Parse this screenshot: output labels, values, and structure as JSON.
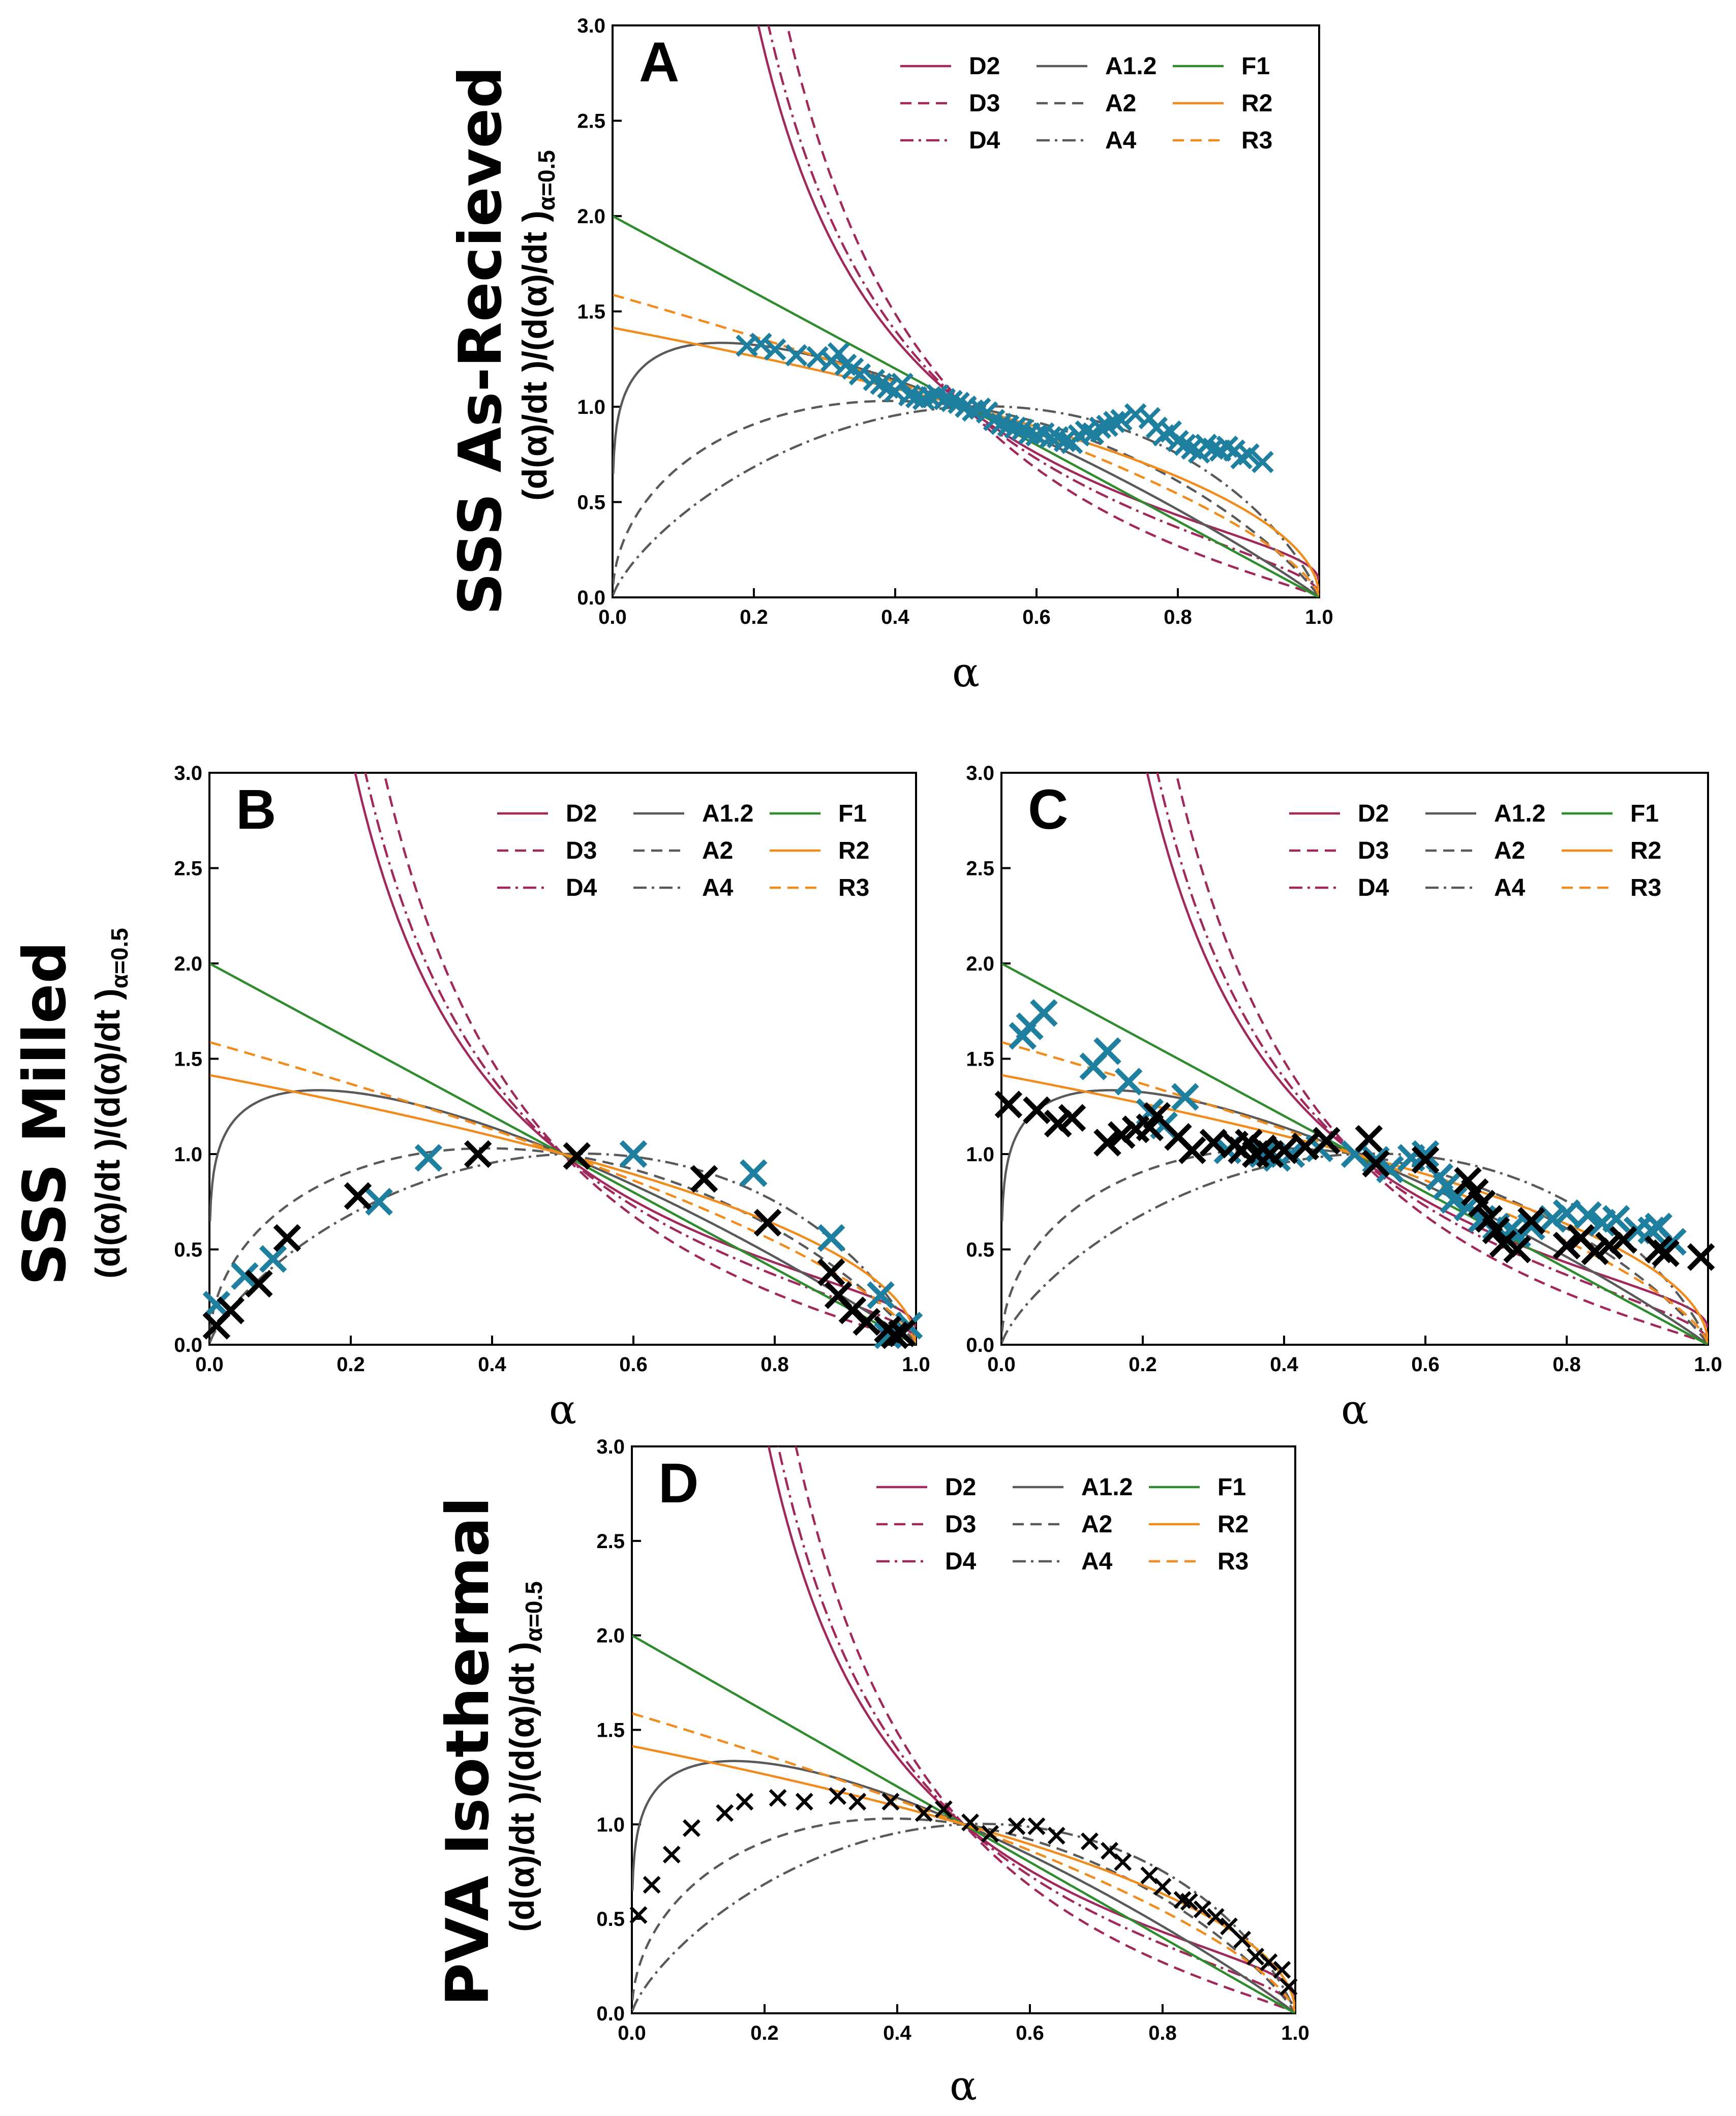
{
  "rows": {
    "as_received": "SSS As-Recieved",
    "milled": "SSS Milled",
    "pva": "PVA Isothermal"
  },
  "axis_text": {
    "y_main": "(d(α)/dt )/(d(α)/dt )",
    "y_sub": "α=0.5",
    "x": "α"
  },
  "colors": {
    "diffusion": "#a0285a",
    "avrami": "#595959",
    "first_order": "#2e8b2e",
    "contracting": "#f08c1e",
    "data_blue": "#1f7f9f",
    "data_black": "#000000"
  },
  "chart_data": [
    {
      "type": "line",
      "panel": "A",
      "row": "as_received",
      "xlim": [
        0,
        1
      ],
      "ylim": [
        0,
        3
      ],
      "xticks": [
        "0.0",
        "0.2",
        "0.4",
        "0.6",
        "0.8",
        "1.0"
      ],
      "yticks": [
        "0.0",
        "0.5",
        "1.0",
        "1.5",
        "2.0",
        "2.5",
        "3.0"
      ],
      "models": [
        "D2",
        "D3",
        "D4",
        "A1.2",
        "A2",
        "A4",
        "F1",
        "R2",
        "R3"
      ],
      "legend": [
        [
          "D2",
          "A1.2",
          "F1"
        ],
        [
          "D3",
          "A2",
          "R2"
        ],
        [
          "D4",
          "A4",
          "R3"
        ]
      ],
      "legend_position": "top-right",
      "data_series": [
        {
          "name": "As-Recieved",
          "color": "blue",
          "marker_scale": 1,
          "points": [
            [
              0.19,
              1.32
            ],
            [
              0.21,
              1.33
            ],
            [
              0.23,
              1.3
            ],
            [
              0.26,
              1.27
            ],
            [
              0.29,
              1.26
            ],
            [
              0.31,
              1.24
            ],
            [
              0.32,
              1.28
            ],
            [
              0.33,
              1.22
            ],
            [
              0.34,
              1.2
            ],
            [
              0.35,
              1.17
            ],
            [
              0.37,
              1.14
            ],
            [
              0.38,
              1.12
            ],
            [
              0.39,
              1.1
            ],
            [
              0.4,
              1.08
            ],
            [
              0.41,
              1.12
            ],
            [
              0.42,
              1.06
            ],
            [
              0.43,
              1.05
            ],
            [
              0.44,
              1.04
            ],
            [
              0.45,
              1.05
            ],
            [
              0.46,
              1.06
            ],
            [
              0.47,
              1.04
            ],
            [
              0.48,
              1.03
            ],
            [
              0.49,
              1.02
            ],
            [
              0.5,
              1.0
            ],
            [
              0.51,
              0.98
            ],
            [
              0.52,
              0.99
            ],
            [
              0.53,
              0.97
            ],
            [
              0.54,
              0.93
            ],
            [
              0.55,
              0.91
            ],
            [
              0.56,
              0.9
            ],
            [
              0.57,
              0.89
            ],
            [
              0.58,
              0.88
            ],
            [
              0.59,
              0.86
            ],
            [
              0.6,
              0.85
            ],
            [
              0.61,
              0.86
            ],
            [
              0.62,
              0.84
            ],
            [
              0.63,
              0.84
            ],
            [
              0.64,
              0.82
            ],
            [
              0.65,
              0.81
            ],
            [
              0.66,
              0.85
            ],
            [
              0.67,
              0.87
            ],
            [
              0.68,
              0.86
            ],
            [
              0.69,
              0.89
            ],
            [
              0.7,
              0.9
            ],
            [
              0.71,
              0.92
            ],
            [
              0.72,
              0.93
            ],
            [
              0.74,
              0.96
            ],
            [
              0.76,
              0.94
            ],
            [
              0.77,
              0.89
            ],
            [
              0.78,
              0.85
            ],
            [
              0.79,
              0.87
            ],
            [
              0.8,
              0.82
            ],
            [
              0.81,
              0.8
            ],
            [
              0.82,
              0.78
            ],
            [
              0.83,
              0.76
            ],
            [
              0.84,
              0.8
            ],
            [
              0.85,
              0.78
            ],
            [
              0.86,
              0.77
            ],
            [
              0.87,
              0.79
            ],
            [
              0.88,
              0.77
            ],
            [
              0.89,
              0.73
            ],
            [
              0.9,
              0.75
            ],
            [
              0.92,
              0.71
            ]
          ]
        }
      ]
    },
    {
      "type": "line",
      "panel": "B",
      "row": "milled",
      "xlim": [
        0,
        1
      ],
      "ylim": [
        0,
        3
      ],
      "xticks": [
        "0.0",
        "0.2",
        "0.4",
        "0.6",
        "0.8",
        "1.0"
      ],
      "yticks": [
        "0.0",
        "0.5",
        "1.0",
        "1.5",
        "2.0",
        "2.5",
        "3.0"
      ],
      "models": [
        "D2",
        "D3",
        "D4",
        "A1.2",
        "A2",
        "A4",
        "F1",
        "R2",
        "R3"
      ],
      "legend": [
        [
          "D2",
          "A1.2",
          "F1"
        ],
        [
          "D3",
          "A2",
          "R2"
        ],
        [
          "D4",
          "A4",
          "R3"
        ]
      ],
      "legend_position": "top-right",
      "data_series": [
        {
          "name": "Milled (blue)",
          "color": "blue",
          "marker_scale": 1.25,
          "points": [
            [
              0.01,
              0.21
            ],
            [
              0.05,
              0.36
            ],
            [
              0.09,
              0.45
            ],
            [
              0.24,
              0.75
            ],
            [
              0.31,
              0.98
            ],
            [
              0.6,
              1.0
            ],
            [
              0.77,
              0.9
            ],
            [
              0.88,
              0.56
            ],
            [
              0.95,
              0.26
            ],
            [
              0.96,
              0.05
            ],
            [
              0.99,
              0.1
            ]
          ]
        },
        {
          "name": "Milled (black)",
          "color": "black",
          "marker_scale": 1.25,
          "points": [
            [
              0.01,
              0.1
            ],
            [
              0.03,
              0.18
            ],
            [
              0.07,
              0.32
            ],
            [
              0.11,
              0.56
            ],
            [
              0.21,
              0.78
            ],
            [
              0.38,
              1.0
            ],
            [
              0.52,
              0.99
            ],
            [
              0.7,
              0.87
            ],
            [
              0.79,
              0.64
            ],
            [
              0.88,
              0.38
            ],
            [
              0.89,
              0.26
            ],
            [
              0.91,
              0.18
            ],
            [
              0.93,
              0.12
            ],
            [
              0.96,
              0.08
            ],
            [
              0.97,
              0.05
            ],
            [
              0.98,
              0.06
            ]
          ]
        }
      ]
    },
    {
      "type": "line",
      "panel": "C",
      "row": "milled",
      "xlim": [
        0,
        1
      ],
      "ylim": [
        0,
        3
      ],
      "xticks": [
        "0.0",
        "0.2",
        "0.4",
        "0.6",
        "0.8",
        "1.0"
      ],
      "yticks": [
        "0.0",
        "0.5",
        "1.0",
        "1.5",
        "2.0",
        "2.5",
        "3.0"
      ],
      "models": [
        "D2",
        "D3",
        "D4",
        "A1.2",
        "A2",
        "A4",
        "F1",
        "R2",
        "R3"
      ],
      "legend": [
        [
          "D2",
          "A1.2",
          "F1"
        ],
        [
          "D3",
          "A2",
          "R2"
        ],
        [
          "D4",
          "A4",
          "R3"
        ]
      ],
      "legend_position": "top-right",
      "data_series": [
        {
          "name": "Milled (blue)",
          "color": "blue",
          "marker_scale": 1.25,
          "points": [
            [
              0.03,
              1.62
            ],
            [
              0.04,
              1.67
            ],
            [
              0.06,
              1.74
            ],
            [
              0.13,
              1.46
            ],
            [
              0.15,
              1.54
            ],
            [
              0.18,
              1.38
            ],
            [
              0.21,
              1.22
            ],
            [
              0.23,
              1.15
            ],
            [
              0.26,
              1.3
            ],
            [
              0.32,
              1.02
            ],
            [
              0.37,
              1.0
            ],
            [
              0.39,
              0.98
            ],
            [
              0.41,
              1.0
            ],
            [
              0.45,
              1.03
            ],
            [
              0.5,
              1.0
            ],
            [
              0.53,
              0.97
            ],
            [
              0.55,
              0.92
            ],
            [
              0.58,
              0.98
            ],
            [
              0.6,
              1.0
            ],
            [
              0.62,
              0.88
            ],
            [
              0.63,
              0.83
            ],
            [
              0.64,
              0.76
            ],
            [
              0.66,
              0.72
            ],
            [
              0.68,
              0.66
            ],
            [
              0.7,
              0.62
            ],
            [
              0.72,
              0.6
            ],
            [
              0.73,
              0.58
            ],
            [
              0.75,
              0.62
            ],
            [
              0.78,
              0.66
            ],
            [
              0.8,
              0.69
            ],
            [
              0.83,
              0.68
            ],
            [
              0.85,
              0.64
            ],
            [
              0.87,
              0.66
            ],
            [
              0.9,
              0.6
            ],
            [
              0.92,
              0.6
            ],
            [
              0.93,
              0.62
            ],
            [
              0.95,
              0.54
            ]
          ]
        },
        {
          "name": "Milled (black)",
          "color": "black",
          "marker_scale": 1.25,
          "points": [
            [
              0.01,
              1.26
            ],
            [
              0.05,
              1.23
            ],
            [
              0.08,
              1.16
            ],
            [
              0.1,
              1.19
            ],
            [
              0.15,
              1.06
            ],
            [
              0.17,
              1.1
            ],
            [
              0.19,
              1.13
            ],
            [
              0.21,
              1.14
            ],
            [
              0.22,
              1.2
            ],
            [
              0.25,
              1.09
            ],
            [
              0.27,
              1.02
            ],
            [
              0.3,
              1.06
            ],
            [
              0.33,
              1.05
            ],
            [
              0.34,
              1.02
            ],
            [
              0.35,
              1.06
            ],
            [
              0.36,
              1.0
            ],
            [
              0.37,
              1.03
            ],
            [
              0.38,
              1.0
            ],
            [
              0.4,
              1.02
            ],
            [
              0.43,
              1.04
            ],
            [
              0.46,
              1.07
            ],
            [
              0.52,
              1.08
            ],
            [
              0.53,
              0.95
            ],
            [
              0.6,
              0.97
            ],
            [
              0.66,
              0.86
            ],
            [
              0.67,
              0.8
            ],
            [
              0.68,
              0.74
            ],
            [
              0.69,
              0.66
            ],
            [
              0.7,
              0.6
            ],
            [
              0.71,
              0.53
            ],
            [
              0.73,
              0.5
            ],
            [
              0.75,
              0.65
            ],
            [
              0.8,
              0.52
            ],
            [
              0.82,
              0.56
            ],
            [
              0.84,
              0.49
            ],
            [
              0.86,
              0.52
            ],
            [
              0.88,
              0.55
            ],
            [
              0.93,
              0.5
            ],
            [
              0.94,
              0.48
            ],
            [
              0.99,
              0.46
            ]
          ]
        }
      ]
    },
    {
      "type": "line",
      "panel": "D",
      "row": "pva",
      "xlim": [
        0,
        1
      ],
      "ylim": [
        0,
        3
      ],
      "xticks": [
        "0.0",
        "0.2",
        "0.4",
        "0.6",
        "0.8",
        "1.0"
      ],
      "yticks": [
        "0.0",
        "0.5",
        "1.0",
        "1.5",
        "2.0",
        "2.5",
        "3.0"
      ],
      "models": [
        "D2",
        "D3",
        "D4",
        "A1.2",
        "A2",
        "A4",
        "F1",
        "R2",
        "R3"
      ],
      "legend": [
        [
          "D2",
          "A1.2",
          "F1"
        ],
        [
          "D3",
          "A2",
          "R2"
        ],
        [
          "D4",
          "A4",
          "R3"
        ]
      ],
      "legend_position": "top-right",
      "data_series": [
        {
          "name": "PVA Isothermal",
          "color": "black",
          "marker_scale": 0.8,
          "points": [
            [
              0.01,
              0.52
            ],
            [
              0.03,
              0.68
            ],
            [
              0.06,
              0.84
            ],
            [
              0.09,
              0.98
            ],
            [
              0.14,
              1.06
            ],
            [
              0.17,
              1.12
            ],
            [
              0.22,
              1.14
            ],
            [
              0.26,
              1.12
            ],
            [
              0.31,
              1.15
            ],
            [
              0.34,
              1.12
            ],
            [
              0.39,
              1.12
            ],
            [
              0.44,
              1.06
            ],
            [
              0.47,
              1.08
            ],
            [
              0.51,
              1.01
            ],
            [
              0.54,
              0.95
            ],
            [
              0.58,
              0.99
            ],
            [
              0.61,
              0.99
            ],
            [
              0.64,
              0.94
            ],
            [
              0.69,
              0.91
            ],
            [
              0.72,
              0.86
            ],
            [
              0.74,
              0.8
            ],
            [
              0.78,
              0.73
            ],
            [
              0.8,
              0.67
            ],
            [
              0.83,
              0.6
            ],
            [
              0.84,
              0.59
            ],
            [
              0.86,
              0.55
            ],
            [
              0.88,
              0.51
            ],
            [
              0.9,
              0.46
            ],
            [
              0.92,
              0.39
            ],
            [
              0.94,
              0.3
            ],
            [
              0.96,
              0.27
            ],
            [
              0.98,
              0.23
            ],
            [
              0.99,
              0.14
            ]
          ]
        }
      ]
    }
  ]
}
